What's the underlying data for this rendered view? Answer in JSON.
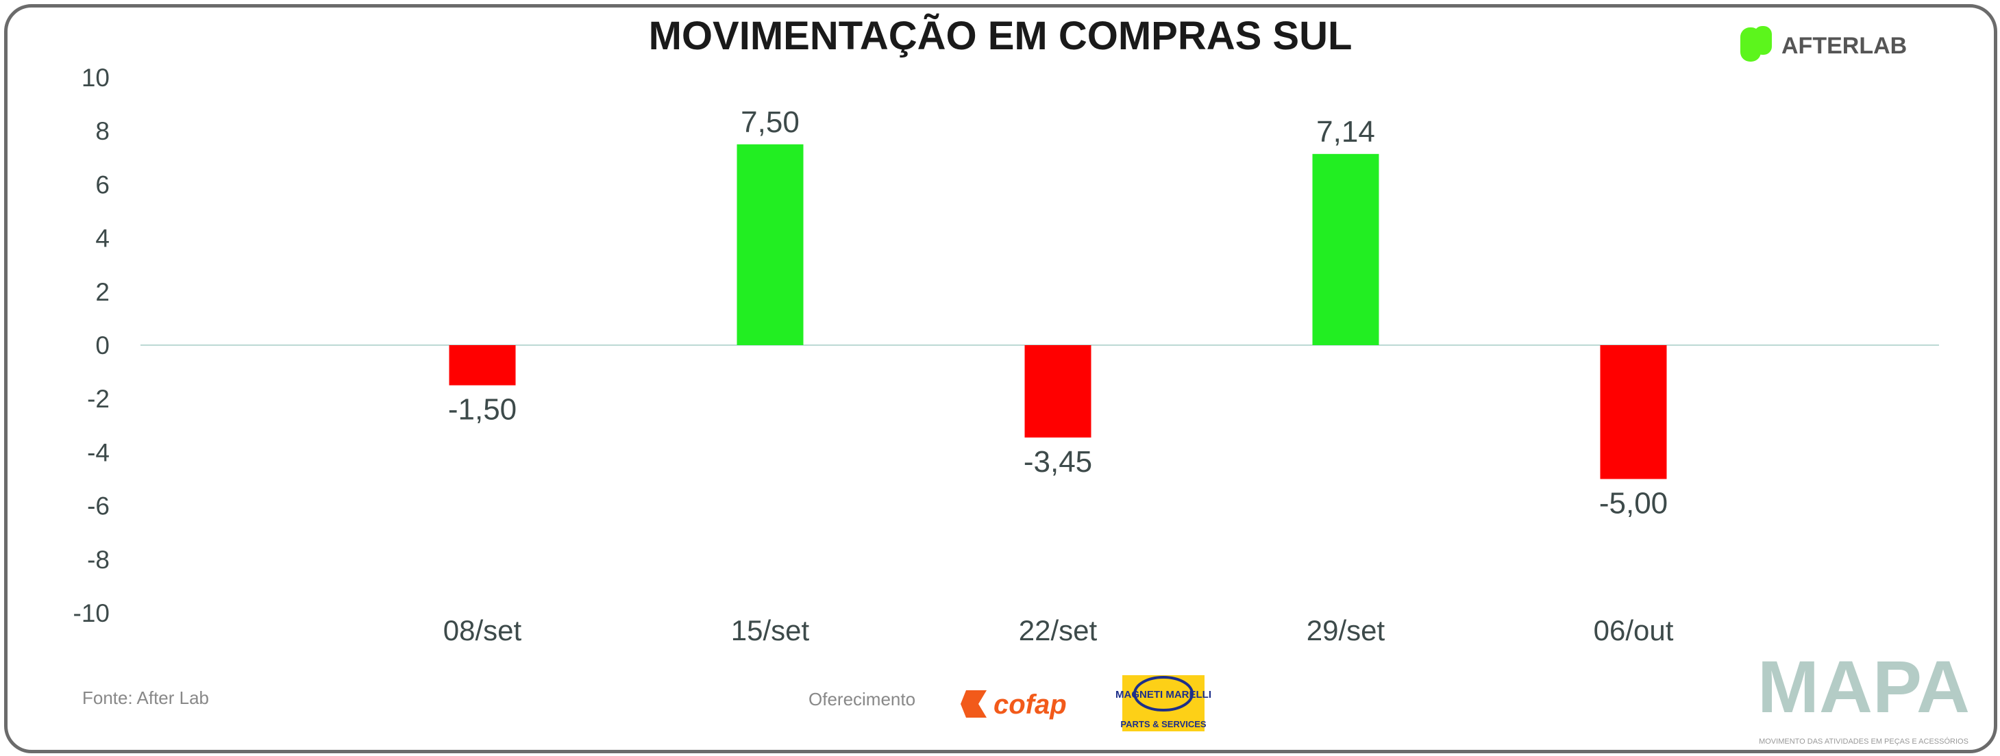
{
  "chart_data": {
    "type": "bar",
    "title": "MOVIMENTAÇÃO EM COMPRAS SUL",
    "categories": [
      "08/set",
      "15/set",
      "22/set",
      "29/set",
      "06/out"
    ],
    "values": [
      -1.5,
      7.5,
      -3.45,
      7.14,
      -5.0
    ],
    "data_labels": [
      "-1,50",
      "7,50",
      "-3,45",
      "7,14",
      "-5,00"
    ],
    "yticks": [
      "10",
      "8",
      "6",
      "4",
      "2",
      "0",
      "-2",
      "-4",
      "-6",
      "-8",
      "-10"
    ],
    "ylim": [
      -10,
      10
    ],
    "grid": false,
    "legend": "none",
    "colors": {
      "positive": "#22ee22",
      "negative": "#ff0000",
      "zero_line": "#bcd9d4"
    }
  },
  "branding": {
    "afterlab": "AFTERLAB",
    "afterlab_color": "#5cf51c",
    "source": "Fonte: After Lab",
    "sponsor_label": "Oferecimento",
    "cofap": "cofap",
    "cofap_color": "#f25a1a",
    "magneti_top": "MAGNETI MARELLI",
    "magneti_bottom": "PARTS & SERVICES",
    "magneti_color": "#fdd017",
    "mapa": "MAPA",
    "mapa_sub": "MOVIMENTO DAS ATIVIDADES EM PEÇAS E ACESSÓRIOS",
    "mapa_color": "#b4ccc6"
  }
}
